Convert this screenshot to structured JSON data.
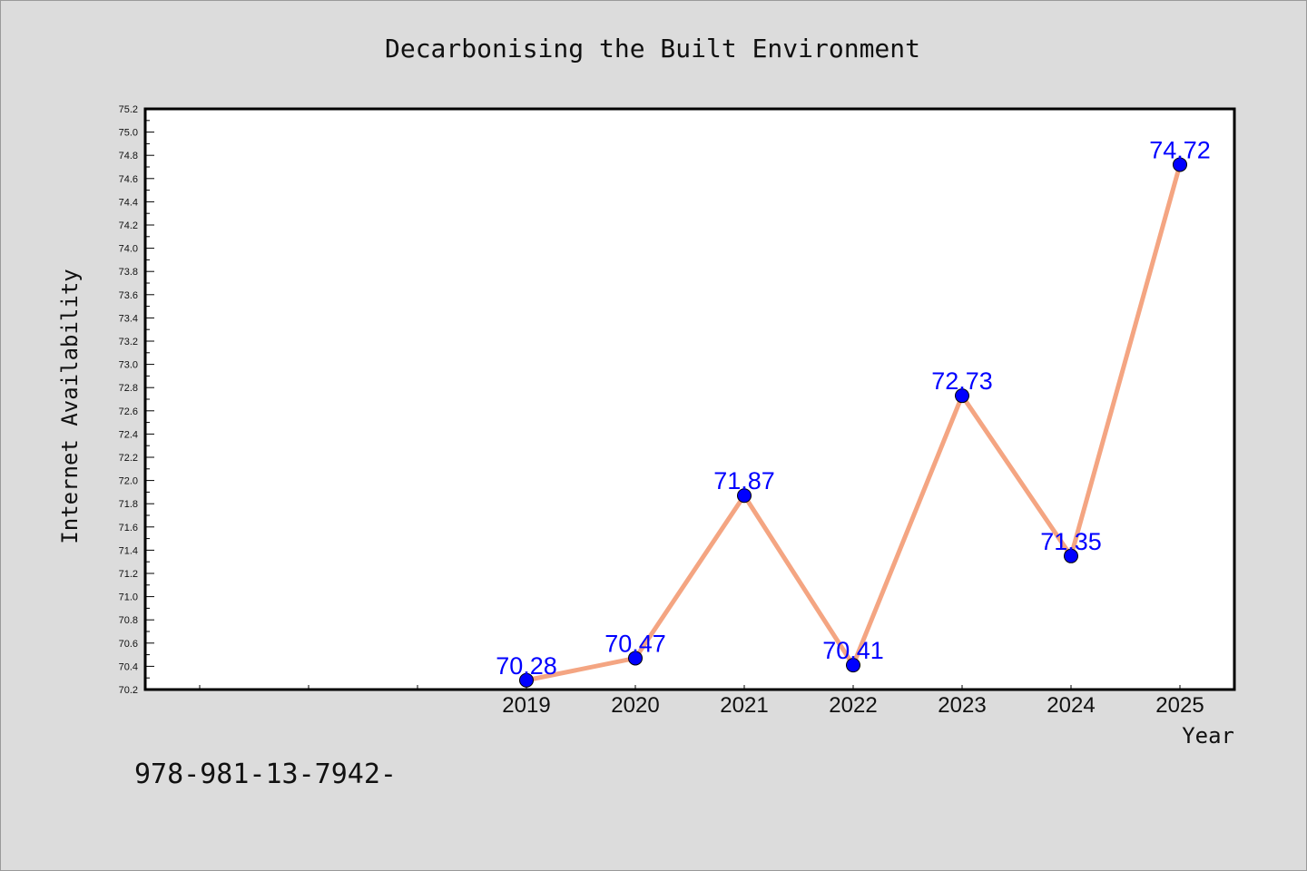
{
  "chart_data": {
    "type": "line",
    "title": "Decarbonising the Built Environment",
    "xlabel": "Year",
    "ylabel": "Internet Availability",
    "x": [
      2019,
      2020,
      2021,
      2022,
      2023,
      2024,
      2025
    ],
    "values": [
      70.28,
      70.47,
      71.87,
      70.41,
      72.73,
      71.35,
      74.72
    ],
    "data_labels": [
      "70.28",
      "70.47",
      "71.87",
      "70.41",
      "72.73",
      "71.35",
      "74.72"
    ],
    "x_tick_labels": [
      "2019",
      "2020",
      "2021",
      "2022",
      "2023",
      "2024",
      "2025"
    ],
    "xlim": [
      2015.5,
      2025.5
    ],
    "ylim": [
      70.2,
      75.2
    ],
    "y_tick_step": 0.2,
    "grid": false,
    "line_color": "#f4a582",
    "marker_color": "#0000ff",
    "label_color": "#0000ff"
  },
  "footer_text": "978-981-13-7942-"
}
